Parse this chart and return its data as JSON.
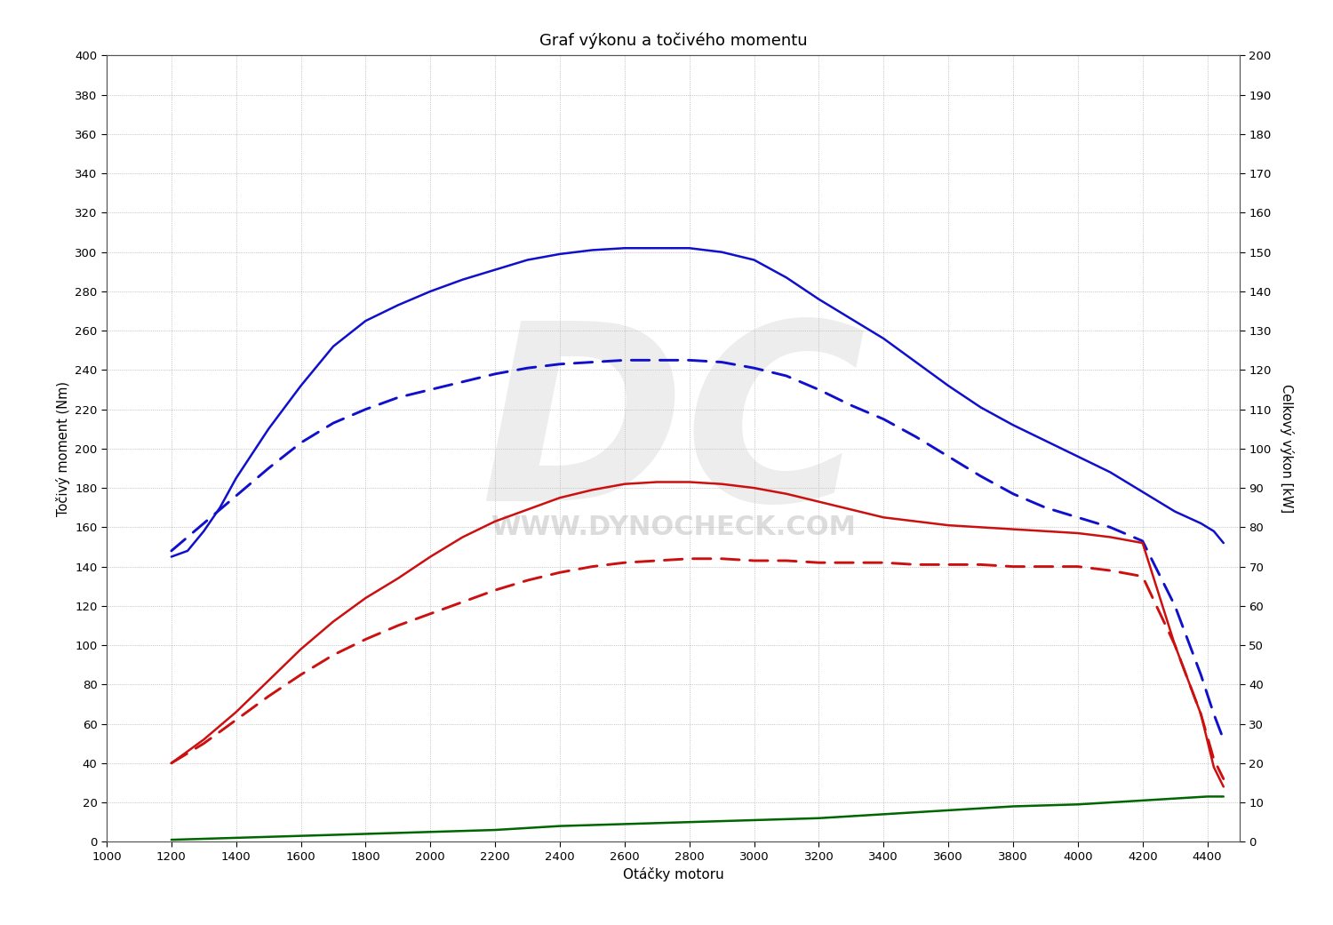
{
  "title": "Graf výkonu a točivého momentu",
  "xlabel": "Otáčky motoru",
  "ylabel_left": "Točivý moment (Nm)",
  "ylabel_right": "Celkový výkon [kW]",
  "ylim_left": [
    0,
    400
  ],
  "ylim_right": [
    0,
    200
  ],
  "xlim": [
    1000,
    4500
  ],
  "yticks_left": [
    0,
    20,
    40,
    60,
    80,
    100,
    120,
    140,
    160,
    180,
    200,
    220,
    240,
    260,
    280,
    300,
    320,
    340,
    360,
    380,
    400
  ],
  "yticks_right": [
    0,
    10,
    20,
    30,
    40,
    50,
    60,
    70,
    80,
    90,
    100,
    110,
    120,
    130,
    140,
    150,
    160,
    170,
    180,
    190,
    200
  ],
  "xticks": [
    1000,
    1200,
    1400,
    1600,
    1800,
    2000,
    2200,
    2400,
    2600,
    2800,
    3000,
    3200,
    3400,
    3600,
    3800,
    4000,
    4200,
    4400
  ],
  "background_color": "#ffffff",
  "grid_color": "#888888",
  "watermark_url": "WWW.DYNOCHECK.COM",
  "watermark_dc": "DC",
  "blue_solid_x": [
    1200,
    1250,
    1300,
    1350,
    1400,
    1500,
    1600,
    1700,
    1800,
    1900,
    2000,
    2100,
    2200,
    2300,
    2400,
    2500,
    2600,
    2700,
    2800,
    2900,
    3000,
    3100,
    3200,
    3300,
    3400,
    3500,
    3600,
    3700,
    3800,
    3900,
    4000,
    4100,
    4200,
    4300,
    4380,
    4420,
    4450
  ],
  "blue_solid_y": [
    145,
    148,
    158,
    170,
    185,
    210,
    232,
    252,
    265,
    273,
    280,
    286,
    291,
    296,
    299,
    301,
    302,
    302,
    302,
    300,
    296,
    287,
    276,
    266,
    256,
    244,
    232,
    221,
    212,
    204,
    196,
    188,
    178,
    168,
    162,
    158,
    152
  ],
  "blue_dashed_x": [
    1200,
    1300,
    1400,
    1500,
    1600,
    1700,
    1800,
    1900,
    2000,
    2100,
    2200,
    2300,
    2400,
    2500,
    2600,
    2700,
    2800,
    2900,
    3000,
    3100,
    3200,
    3300,
    3400,
    3500,
    3600,
    3700,
    3800,
    3900,
    4000,
    4100,
    4200,
    4300,
    4380,
    4420,
    4450
  ],
  "blue_dashed_y": [
    148,
    162,
    176,
    190,
    203,
    213,
    220,
    226,
    230,
    234,
    238,
    241,
    243,
    244,
    245,
    245,
    245,
    244,
    241,
    237,
    230,
    222,
    215,
    206,
    196,
    186,
    177,
    170,
    165,
    160,
    153,
    120,
    85,
    65,
    52
  ],
  "red_solid_x": [
    1200,
    1300,
    1400,
    1500,
    1600,
    1700,
    1800,
    1900,
    2000,
    2100,
    2200,
    2300,
    2400,
    2500,
    2600,
    2700,
    2800,
    2900,
    3000,
    3100,
    3200,
    3300,
    3400,
    3500,
    3600,
    3700,
    3800,
    3900,
    4000,
    4100,
    4200,
    4300,
    4380,
    4420,
    4450
  ],
  "red_solid_y": [
    40,
    52,
    66,
    82,
    98,
    112,
    124,
    134,
    145,
    155,
    163,
    169,
    175,
    179,
    182,
    183,
    183,
    182,
    180,
    177,
    173,
    169,
    165,
    163,
    161,
    160,
    159,
    158,
    157,
    155,
    152,
    100,
    65,
    38,
    28
  ],
  "red_dashed_x": [
    1200,
    1300,
    1400,
    1500,
    1600,
    1700,
    1800,
    1900,
    2000,
    2100,
    2200,
    2300,
    2400,
    2500,
    2600,
    2700,
    2800,
    2900,
    3000,
    3100,
    3200,
    3300,
    3400,
    3500,
    3600,
    3700,
    3800,
    3900,
    4000,
    4100,
    4200,
    4300,
    4380,
    4420,
    4450
  ],
  "red_dashed_y": [
    40,
    50,
    62,
    74,
    85,
    95,
    103,
    110,
    116,
    122,
    128,
    133,
    137,
    140,
    142,
    143,
    144,
    144,
    143,
    143,
    142,
    142,
    142,
    141,
    141,
    141,
    140,
    140,
    140,
    138,
    135,
    100,
    65,
    42,
    32
  ],
  "green_x": [
    1200,
    1400,
    1600,
    1800,
    2000,
    2200,
    2400,
    2600,
    2800,
    3000,
    3200,
    3400,
    3600,
    3800,
    4000,
    4200,
    4400,
    4450
  ],
  "green_y": [
    1,
    2,
    3,
    4,
    5,
    6,
    8,
    9,
    10,
    11,
    12,
    14,
    16,
    18,
    19,
    21,
    23,
    23
  ],
  "blue_color": "#1010cc",
  "red_color": "#cc1010",
  "green_color": "#006600",
  "line_width": 1.8,
  "dash_pattern": [
    7,
    4
  ]
}
